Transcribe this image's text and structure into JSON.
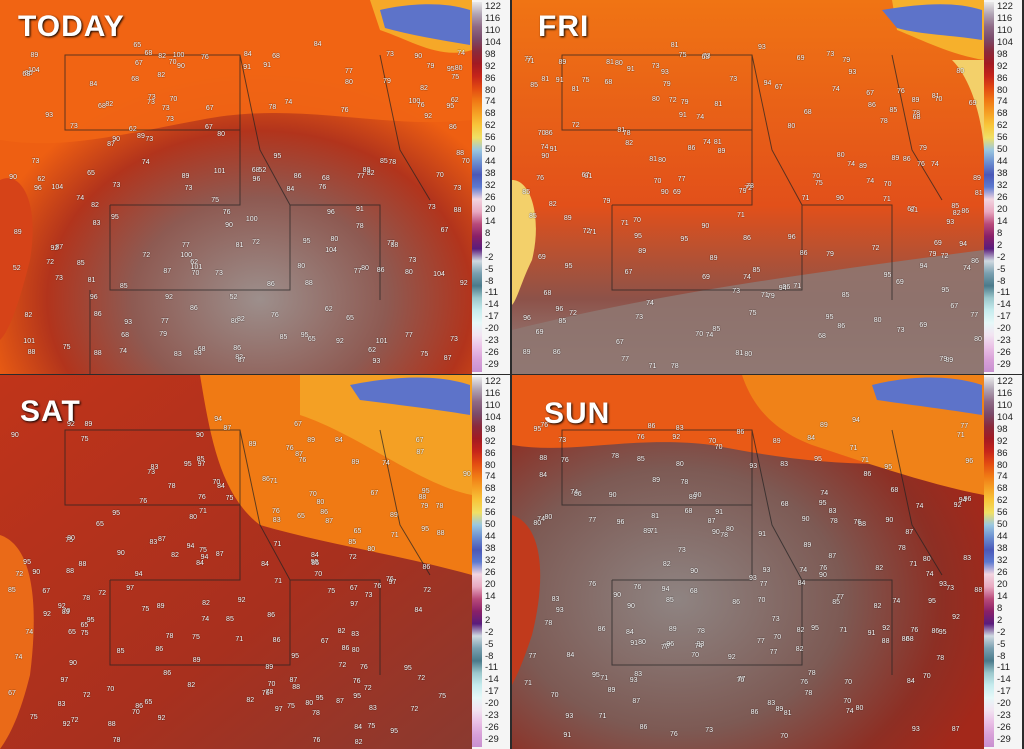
{
  "panels": [
    {
      "id": "today",
      "title": "TODAY"
    },
    {
      "id": "fri",
      "title": "FRI"
    },
    {
      "id": "sat",
      "title": "SAT"
    },
    {
      "id": "sun",
      "title": "SUN"
    }
  ],
  "scale_labels": [
    "122",
    "116",
    "110",
    "104",
    "98",
    "92",
    "86",
    "80",
    "74",
    "68",
    "62",
    "56",
    "50",
    "44",
    "38",
    "32",
    "26",
    "20",
    "14",
    "8",
    "2",
    "-2",
    "-5",
    "-8",
    "-11",
    "-14",
    "-17",
    "-20",
    "-23",
    "-26",
    "-29"
  ],
  "scale_colors": [
    "#e8e8e8",
    "#b0a4b4",
    "#8e6a86",
    "#7a4a6a",
    "#8a2a3c",
    "#a31a22",
    "#c5241a",
    "#e24a12",
    "#f07814",
    "#f5a024",
    "#f8c53a",
    "#f0e066",
    "#9ac7e0",
    "#6c8fd0",
    "#4a58b8",
    "#5d7ad0",
    "#f2d4e0",
    "#e8a8c0",
    "#b84a7a",
    "#8a2068",
    "#5a1c7c",
    "#cfd9e0",
    "#7aa0b0",
    "#4a7a8a",
    "#9cc8cc",
    "#c6ecee",
    "#e6f8f8",
    "#f2e4f2",
    "#eac0e6",
    "#d8a0d8",
    "#c890d0"
  ],
  "today_obs": [
    "73",
    "70",
    "65",
    "67",
    "74",
    "72",
    "76",
    "75",
    "77",
    "73",
    "68",
    "80",
    "81",
    "82",
    "83",
    "88",
    "90",
    "91",
    "92",
    "89",
    "87",
    "85",
    "95",
    "93",
    "101",
    "100",
    "104",
    "96",
    "84",
    "86",
    "79",
    "78",
    "62",
    "52"
  ],
  "fri_obs": [
    "68",
    "73",
    "71",
    "74",
    "76",
    "75",
    "70",
    "78",
    "80",
    "79",
    "82",
    "81",
    "85",
    "86",
    "87",
    "89",
    "90",
    "93",
    "95",
    "94",
    "96",
    "67",
    "72",
    "77",
    "69",
    "91"
  ],
  "sat_obs": [
    "79",
    "70",
    "74",
    "73",
    "72",
    "71",
    "80",
    "82",
    "85",
    "86",
    "83",
    "84",
    "88",
    "87",
    "90",
    "89",
    "92",
    "97",
    "94",
    "95",
    "75",
    "67",
    "65",
    "76",
    "78"
  ],
  "sun_obs": [
    "73",
    "70",
    "68",
    "71",
    "74",
    "76",
    "77",
    "80",
    "82",
    "85",
    "86",
    "88",
    "89",
    "90",
    "91",
    "93",
    "94",
    "95",
    "96",
    "92",
    "87",
    "84",
    "83",
    "81",
    "78"
  ]
}
